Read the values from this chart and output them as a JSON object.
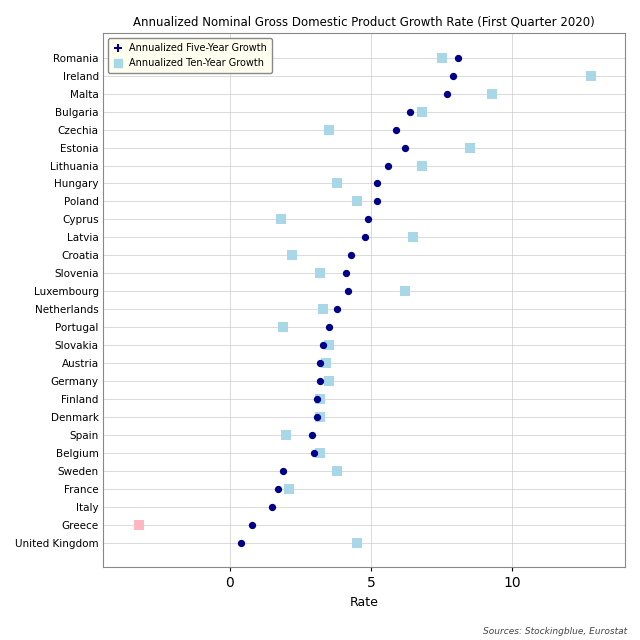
{
  "title": "Annualized Nominal Gross Domestic Product Growth Rate (First Quarter 2020)",
  "xlabel": "Rate",
  "source": "Sources: Stockingblue, Eurostat",
  "countries": [
    "Romania",
    "Ireland",
    "Malta",
    "Bulgaria",
    "Czechia",
    "Estonia",
    "Lithuania",
    "Hungary",
    "Poland",
    "Cyprus",
    "Latvia",
    "Croatia",
    "Slovenia",
    "Luxembourg",
    "Netherlands",
    "Portugal",
    "Slovakia",
    "Austria",
    "Germany",
    "Finland",
    "Denmark",
    "Spain",
    "Belgium",
    "Sweden",
    "France",
    "Italy",
    "Greece",
    "United Kingdom"
  ],
  "five_year": [
    8.1,
    7.9,
    7.7,
    6.4,
    5.9,
    6.2,
    5.6,
    5.2,
    5.2,
    4.9,
    4.8,
    4.3,
    4.1,
    4.2,
    3.8,
    3.5,
    3.3,
    3.2,
    3.2,
    3.1,
    3.1,
    2.9,
    3.0,
    1.9,
    1.7,
    1.5,
    0.8,
    0.4
  ],
  "ten_year": [
    7.5,
    12.8,
    9.3,
    6.8,
    3.5,
    8.5,
    6.8,
    3.8,
    4.5,
    1.8,
    6.5,
    2.2,
    3.2,
    6.2,
    3.3,
    1.9,
    3.5,
    3.4,
    3.5,
    3.2,
    3.2,
    2.0,
    3.2,
    3.8,
    2.1,
    null,
    -3.2,
    4.5
  ],
  "dot_color": "#00008B",
  "square_color": "#a8d8e8",
  "square_neg_color": "#ffb6c1",
  "background_color": "#ffffff",
  "grid_color": "#cccccc",
  "xlim": [
    -4.5,
    14.0
  ],
  "xticks": [
    0,
    5,
    10
  ],
  "legend_bg": "#fffff0"
}
